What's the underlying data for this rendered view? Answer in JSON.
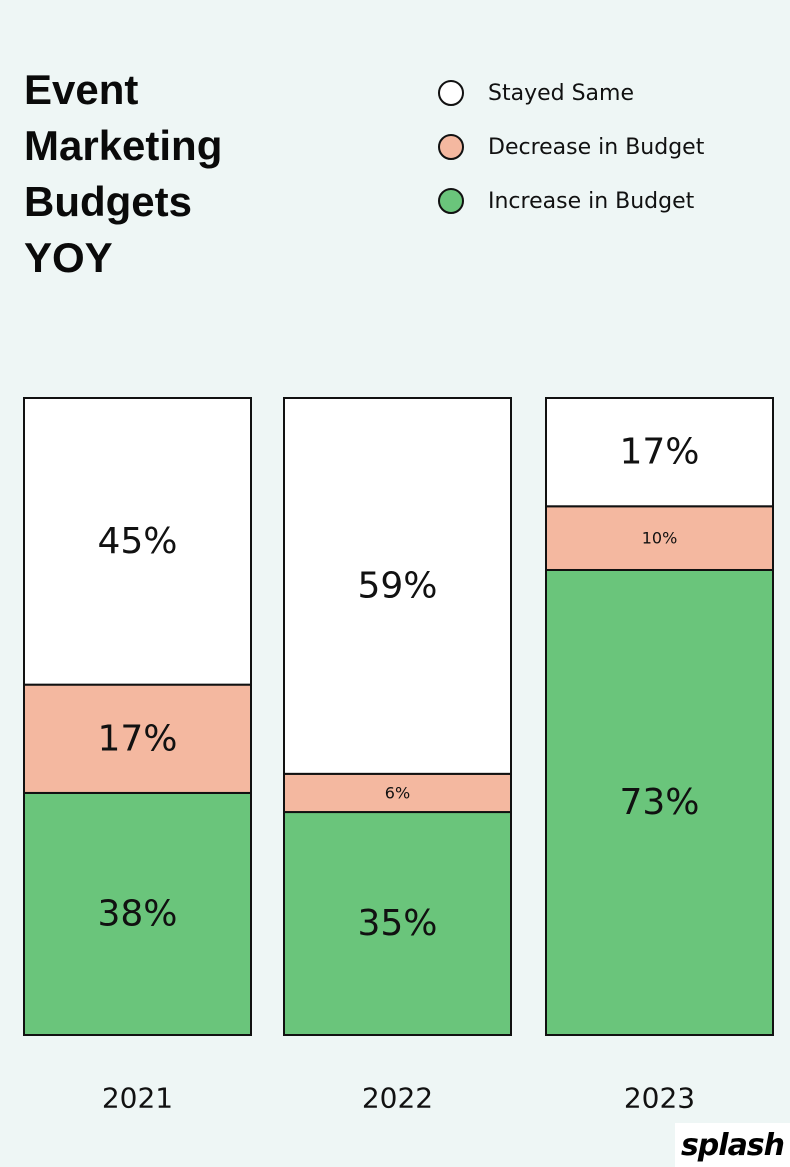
{
  "chart_data": {
    "type": "bar",
    "stacked": true,
    "title": "Event Marketing Budgets YOY",
    "categories": [
      "2021",
      "2022",
      "2023"
    ],
    "series": [
      {
        "name": "Increase in Budget",
        "color": "#6ac57b",
        "values": [
          38,
          35,
          73
        ],
        "labels": [
          "38%",
          "35%",
          "73%"
        ]
      },
      {
        "name": "Decrease in Budget",
        "color": "#f4b8a0",
        "values": [
          17,
          6,
          10
        ],
        "labels": [
          "17%",
          "6%",
          "10%"
        ]
      },
      {
        "name": "Stayed Same",
        "color": "#ffffff",
        "values": [
          45,
          59,
          17
        ],
        "labels": [
          "45%",
          "59%",
          "17%"
        ]
      }
    ],
    "ylim": [
      0,
      100
    ],
    "grid": false,
    "legend_position": "top-right",
    "legend_order": [
      "Stayed Same",
      "Decrease in Budget",
      "Increase in Budget"
    ]
  },
  "background_color": "#eef6f5",
  "legend": [
    {
      "label": "Stayed Same",
      "color": "#ffffff"
    },
    {
      "label": "Decrease in Budget",
      "color": "#f4b8a0"
    },
    {
      "label": "Increase in Budget",
      "color": "#6ac57b"
    }
  ],
  "logo": "splash"
}
